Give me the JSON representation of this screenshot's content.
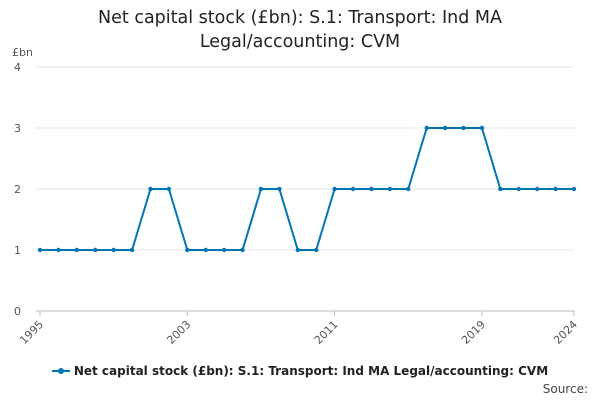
{
  "title_line1": "Net capital stock (£bn): S.1: Transport: Ind MA",
  "title_line2": "Legal/accounting: CVM",
  "source_label": "Source:",
  "chart_data": {
    "type": "line",
    "ylabel": "£bn",
    "xlabel": "",
    "ylim": [
      0,
      4
    ],
    "yticks": [
      0,
      1,
      2,
      3,
      4
    ],
    "xticks": [
      1995,
      2003,
      2011,
      2019,
      2024
    ],
    "grid": true,
    "legend_position": "bottom",
    "colors": {
      "series": "#0075b3",
      "grid": "#e6e6e6"
    },
    "x": [
      1995,
      1996,
      1997,
      1998,
      1999,
      2000,
      2001,
      2002,
      2003,
      2004,
      2005,
      2006,
      2007,
      2008,
      2009,
      2010,
      2011,
      2012,
      2013,
      2014,
      2015,
      2016,
      2017,
      2018,
      2019,
      2020,
      2021,
      2022,
      2023,
      2024
    ],
    "series": [
      {
        "name": "Net capital stock (£bn): S.1: Transport: Ind MA Legal/accounting: CVM",
        "values": [
          1,
          1,
          1,
          1,
          1,
          1,
          2,
          2,
          1,
          1,
          1,
          1,
          2,
          2,
          1,
          1,
          2,
          2,
          2,
          2,
          2,
          3,
          3,
          3,
          3,
          2,
          2,
          2,
          2,
          2
        ]
      }
    ]
  }
}
